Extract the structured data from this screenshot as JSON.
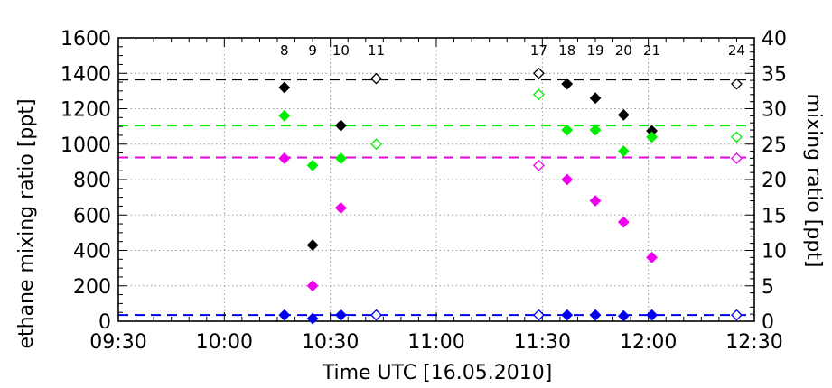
{
  "chart_data": {
    "type": "scatter",
    "xlabel": "Time UTC [16.05.2010]",
    "ylabel": "ethane mixing ratio [ppt]",
    "ylabel_right": "mixing ratio [ppt]",
    "x_range": [
      "09:30",
      "12:30"
    ],
    "x_ticks": [
      "09:30",
      "10:00",
      "10:30",
      "11:00",
      "11:30",
      "12:00",
      "12:30"
    ],
    "ylim": [
      0,
      1600
    ],
    "y_ticks": [
      0,
      200,
      400,
      600,
      800,
      1000,
      1200,
      1400,
      1600
    ],
    "ylim_right": [
      0,
      40
    ],
    "y_ticks_right": [
      0,
      5,
      10,
      15,
      20,
      25,
      30,
      35,
      40
    ],
    "grid": true,
    "sample_labels": [
      {
        "time": "10:17",
        "label": "8"
      },
      {
        "time": "10:25",
        "label": "9"
      },
      {
        "time": "10:33",
        "label": "10"
      },
      {
        "time": "10:43",
        "label": "11"
      },
      {
        "time": "11:29",
        "label": "17"
      },
      {
        "time": "11:37",
        "label": "18"
      },
      {
        "time": "11:45",
        "label": "19"
      },
      {
        "time": "11:53",
        "label": "20"
      },
      {
        "time": "12:01",
        "label": "21"
      },
      {
        "time": "12:25",
        "label": "24"
      }
    ],
    "reference_lines": [
      {
        "color": "#000000",
        "value": 1365,
        "axis": "left"
      },
      {
        "color": "#00ee00",
        "value": 1105,
        "axis": "left"
      },
      {
        "color": "#ee00ee",
        "value": 925,
        "axis": "left"
      },
      {
        "color": "#0000ee",
        "value": 35,
        "axis": "left"
      }
    ],
    "series": [
      {
        "color": "#000000",
        "axis": "left",
        "points": [
          {
            "x": "10:17",
            "y": 1320,
            "filled": true
          },
          {
            "x": "10:25",
            "y": 430,
            "filled": true
          },
          {
            "x": "10:33",
            "y": 1105,
            "filled": true
          },
          {
            "x": "10:43",
            "y": 1370,
            "filled": false
          },
          {
            "x": "11:29",
            "y": 1400,
            "filled": false
          },
          {
            "x": "11:37",
            "y": 1340,
            "filled": true
          },
          {
            "x": "11:45",
            "y": 1260,
            "filled": true
          },
          {
            "x": "11:53",
            "y": 1165,
            "filled": true
          },
          {
            "x": "12:01",
            "y": 1075,
            "filled": true
          },
          {
            "x": "12:25",
            "y": 1340,
            "filled": false
          }
        ]
      },
      {
        "color": "#00ee00",
        "axis": "left",
        "points": [
          {
            "x": "10:17",
            "y": 1160,
            "filled": true
          },
          {
            "x": "10:25",
            "y": 880,
            "filled": true
          },
          {
            "x": "10:33",
            "y": 920,
            "filled": true
          },
          {
            "x": "10:43",
            "y": 1000,
            "filled": false
          },
          {
            "x": "11:29",
            "y": 1280,
            "filled": false
          },
          {
            "x": "11:37",
            "y": 1080,
            "filled": true
          },
          {
            "x": "11:45",
            "y": 1080,
            "filled": true
          },
          {
            "x": "11:53",
            "y": 960,
            "filled": true
          },
          {
            "x": "12:01",
            "y": 1040,
            "filled": true
          },
          {
            "x": "12:25",
            "y": 1040,
            "filled": false
          }
        ]
      },
      {
        "color": "#ee00ee",
        "axis": "left",
        "points": [
          {
            "x": "10:17",
            "y": 920,
            "filled": true
          },
          {
            "x": "10:25",
            "y": 200,
            "filled": true
          },
          {
            "x": "10:33",
            "y": 640,
            "filled": true
          },
          {
            "x": "11:29",
            "y": 880,
            "filled": false
          },
          {
            "x": "11:37",
            "y": 800,
            "filled": true
          },
          {
            "x": "11:45",
            "y": 680,
            "filled": true
          },
          {
            "x": "11:53",
            "y": 560,
            "filled": true
          },
          {
            "x": "12:01",
            "y": 360,
            "filled": true
          },
          {
            "x": "12:25",
            "y": 920,
            "filled": false
          }
        ]
      },
      {
        "color": "#0000ee",
        "axis": "left",
        "points": [
          {
            "x": "10:17",
            "y": 35,
            "filled": true
          },
          {
            "x": "10:25",
            "y": 15,
            "filled": true
          },
          {
            "x": "10:33",
            "y": 35,
            "filled": true
          },
          {
            "x": "10:43",
            "y": 35,
            "filled": false
          },
          {
            "x": "11:29",
            "y": 35,
            "filled": false
          },
          {
            "x": "11:37",
            "y": 35,
            "filled": true
          },
          {
            "x": "11:45",
            "y": 35,
            "filled": true
          },
          {
            "x": "11:53",
            "y": 30,
            "filled": true
          },
          {
            "x": "12:01",
            "y": 35,
            "filled": true
          },
          {
            "x": "12:25",
            "y": 35,
            "filled": false
          }
        ]
      }
    ]
  }
}
